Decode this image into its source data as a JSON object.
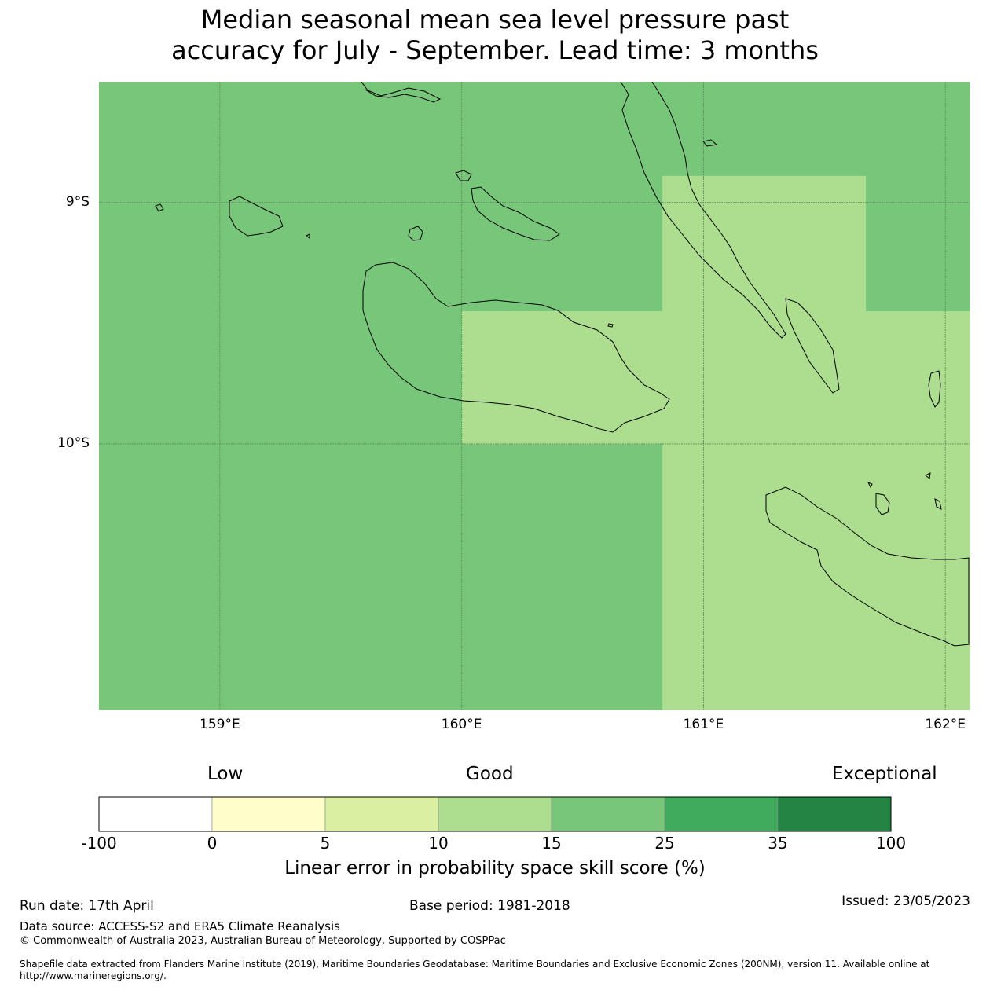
{
  "title": {
    "line1": "Median seasonal mean sea level pressure past",
    "line2": "accuracy for July - September. Lead time: 3 months"
  },
  "map": {
    "lat_ticks": [
      "9°S",
      "10°S"
    ],
    "lon_ticks": [
      "159°E",
      "160°E",
      "161°E",
      "162°E"
    ],
    "extent": {
      "lon_min": 158.5,
      "lon_max": 162.1,
      "lat_top": -8.5,
      "lat_bottom": -11.1
    },
    "cell_colors": {
      "15-25": "#78c679",
      "10-15": "#addd8e"
    },
    "regions": [
      {
        "name": "west-block",
        "lon": [
          158.5,
          160.83
        ],
        "lat": [
          -8.5,
          -11.1
        ],
        "category": "15-25"
      },
      {
        "name": "north-block",
        "lon": [
          160.83,
          162.1
        ],
        "lat": [
          -8.5,
          -8.89
        ],
        "category": "15-25"
      },
      {
        "name": "east-upper-block",
        "lon": [
          161.67,
          162.1
        ],
        "lat": [
          -8.89,
          -9.45
        ],
        "category": "15-25"
      },
      {
        "name": "central-block",
        "lon": [
          160.83,
          161.67
        ],
        "lat": [
          -8.89,
          -9.45
        ],
        "category": "10-15"
      },
      {
        "name": "middle-band",
        "lon": [
          160.0,
          162.1
        ],
        "lat": [
          -9.45,
          -10.0
        ],
        "category": "10-15"
      },
      {
        "name": "south-east-block",
        "lon": [
          160.83,
          162.1
        ],
        "lat": [
          -10.0,
          -11.1
        ],
        "category": "10-15"
      }
    ]
  },
  "legend": {
    "category_labels": {
      "low": "Low",
      "good": "Good",
      "exceptional": "Exceptional"
    },
    "boundaries": [
      "-100",
      "0",
      "5",
      "10",
      "15",
      "25",
      "35",
      "100"
    ],
    "colors": [
      "#ffffff",
      "#ffffcc",
      "#d9f0a3",
      "#addd8e",
      "#78c679",
      "#41ab5d",
      "#238443"
    ],
    "title": "Linear error in probability space skill score (%)"
  },
  "footer": {
    "run_date": "Run date: 17th April",
    "base_period": "Base period: 1981-2018",
    "issued": "Issued: 23/05/2023",
    "data_source": "Data source: ACCESS-S2 and ERA5 Climate Reanalysis",
    "copyright": "© Commonwealth of Australia 2023, Australian Bureau of Meteorology, Supported by COSPPac",
    "shapefile_line1": "Shapefile data extracted from Flanders Marine Institute (2019), Maritime Boundaries Geodatabase: Maritime Boundaries and Exclusive Economic Zones (200NM), version 11. Available online at",
    "shapefile_line2": "http://www.marineregions.org/."
  }
}
